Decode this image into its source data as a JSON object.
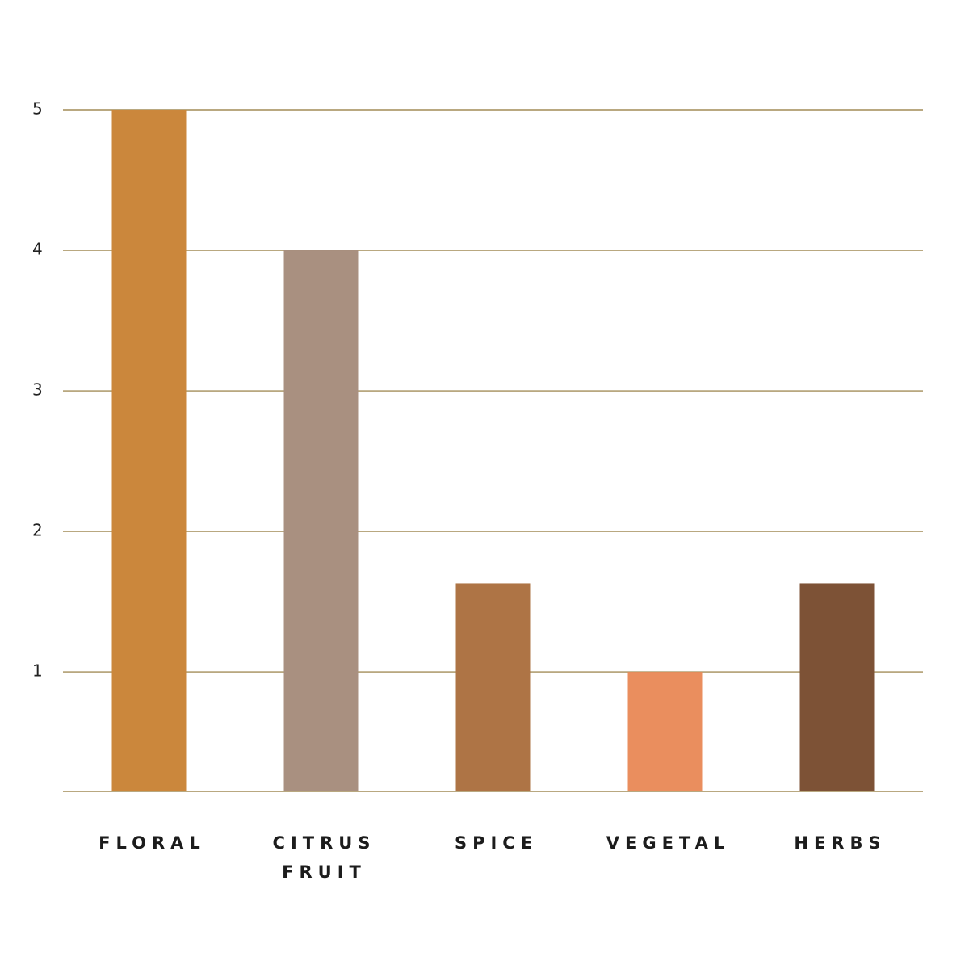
{
  "chart_data": {
    "type": "bar",
    "categories": [
      "FLORAL",
      "CITRUS FRUIT",
      "SPICE",
      "VEGETAL",
      "HERBS"
    ],
    "values": [
      5,
      4,
      1.63,
      1,
      1.63
    ],
    "colors": [
      "#cb873c",
      "#a99080",
      "#ae7445",
      "#ea8e5e",
      "#7d5236"
    ],
    "ylim": [
      0.15,
      5
    ],
    "yticks": [
      1,
      2,
      3,
      4,
      5
    ],
    "grid": true,
    "grid_color": "#8f7434"
  }
}
